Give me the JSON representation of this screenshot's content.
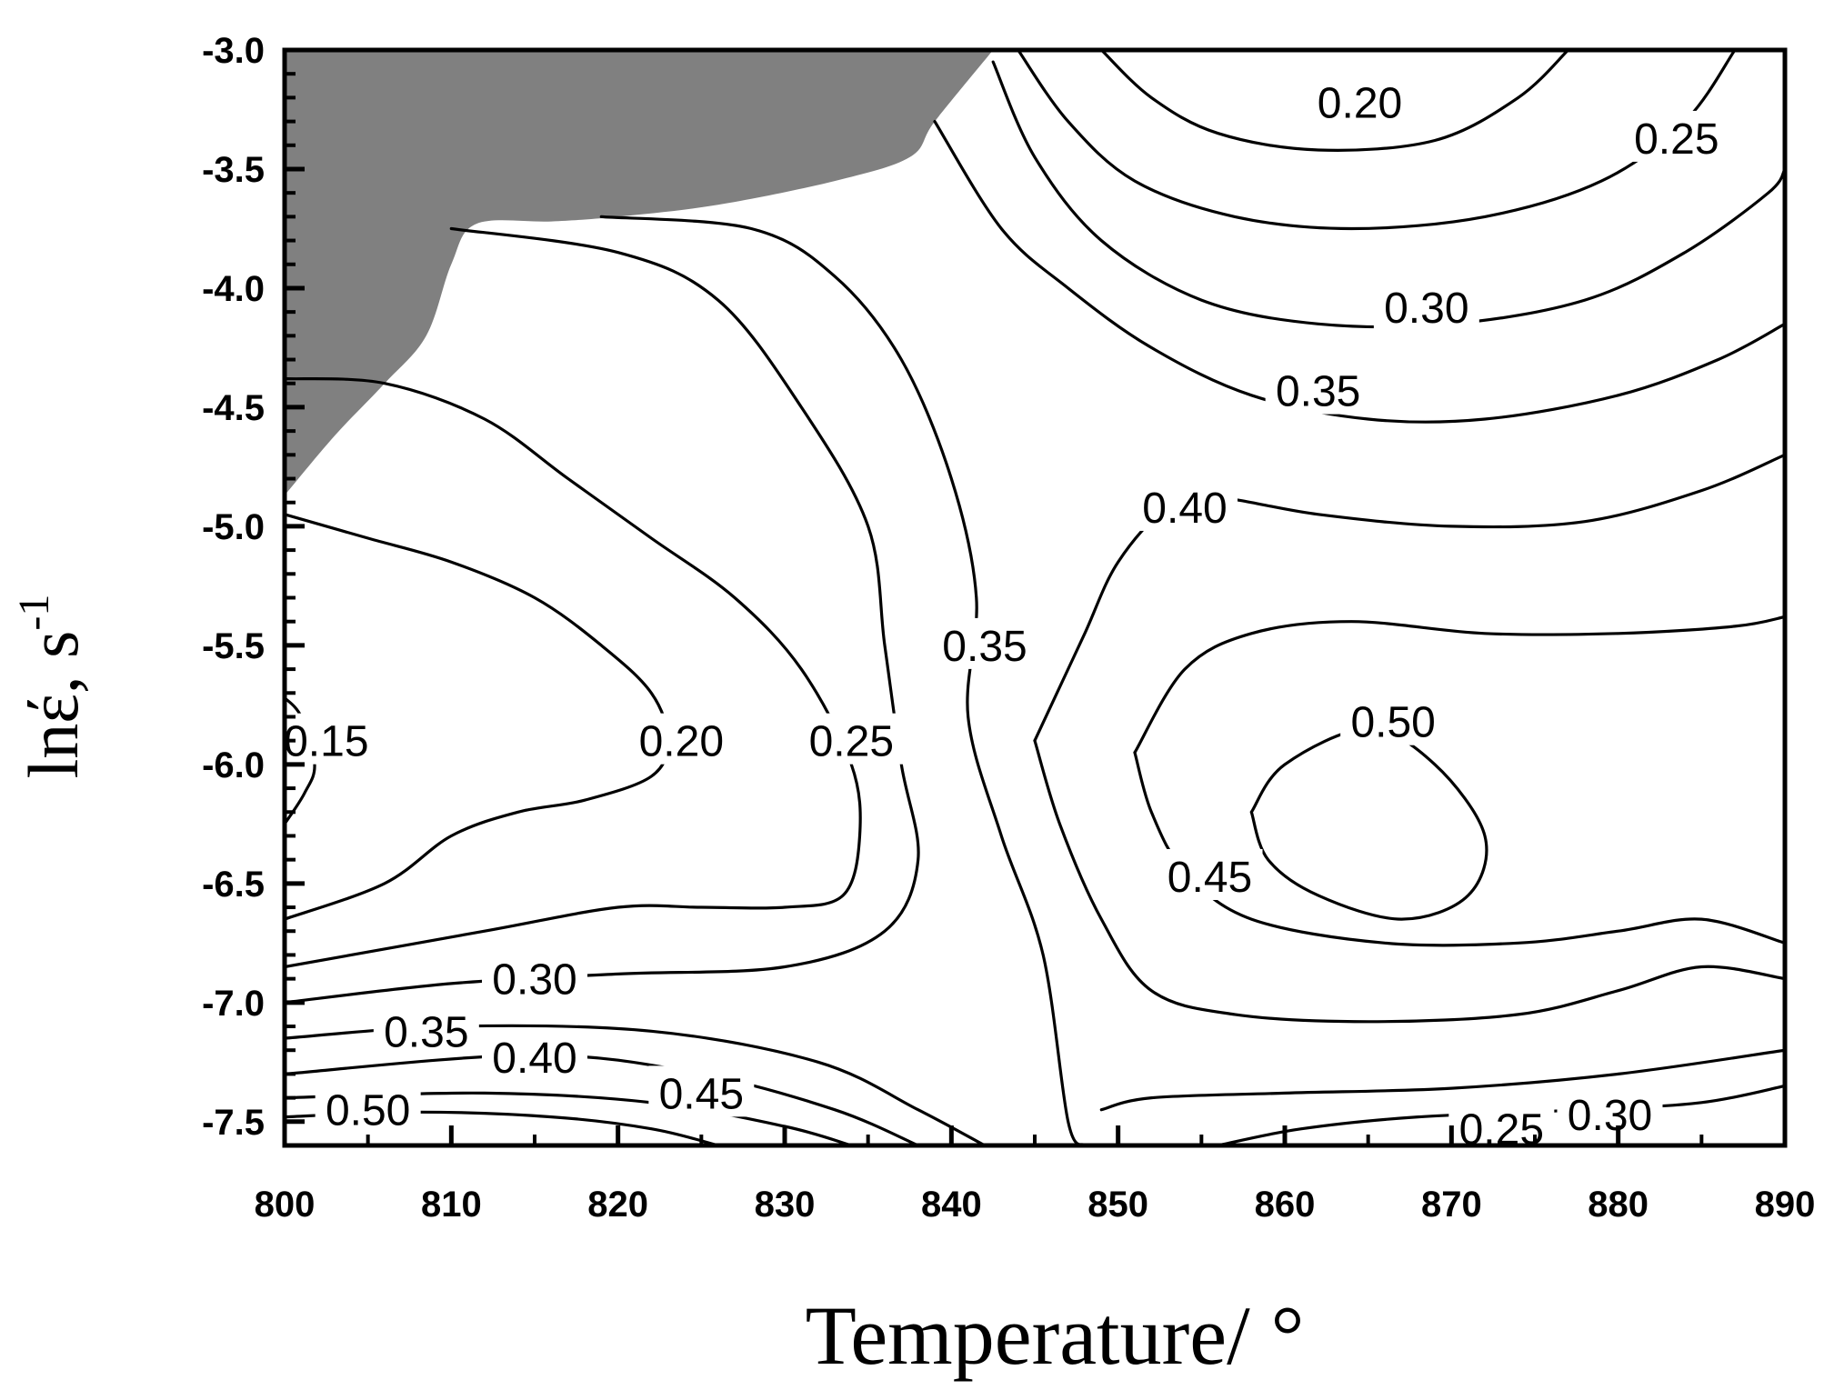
{
  "chart_data": {
    "type": "contour",
    "xlabel": "Temperature/ °",
    "ylabel_main": "lnέ, s",
    "ylabel_sup": "-1",
    "xlim": [
      800,
      890
    ],
    "ylim": [
      -7.6,
      -3.0
    ],
    "xticks": [
      800,
      810,
      820,
      830,
      840,
      850,
      860,
      870,
      880,
      890
    ],
    "xtick_labels": [
      "800",
      "810",
      "820",
      "830",
      "840",
      "850",
      "860",
      "870",
      "880",
      "890"
    ],
    "yticks": [
      -3.0,
      -3.5,
      -4.0,
      -4.5,
      -5.0,
      -5.5,
      -6.0,
      -6.5,
      -7.0,
      -7.5
    ],
    "ytick_labels": [
      "-3.0",
      "-3.5",
      "-4.0",
      "-4.5",
      "-5.0",
      "-5.5",
      "-6.0",
      "-6.5",
      "-7.0",
      "-7.5"
    ],
    "instability_region_color": "#808080",
    "instability_region": [
      [
        800,
        -3.0
      ],
      [
        842.5,
        -3.0
      ],
      [
        839,
        -3.3
      ],
      [
        837.5,
        -3.45
      ],
      [
        833,
        -3.55
      ],
      [
        826,
        -3.65
      ],
      [
        820,
        -3.7
      ],
      [
        816,
        -3.72
      ],
      [
        811.5,
        -3.73
      ],
      [
        810,
        -3.9
      ],
      [
        808.5,
        -4.2
      ],
      [
        806,
        -4.4
      ],
      [
        803,
        -4.62
      ],
      [
        800,
        -4.87
      ]
    ],
    "contours": [
      {
        "level": "0.15",
        "points": [
          [
            800,
            -5.72
          ],
          [
            801,
            -5.8
          ],
          [
            801.8,
            -6.0
          ],
          [
            801.2,
            -6.12
          ],
          [
            800,
            -6.25
          ]
        ]
      },
      {
        "level": "0.20",
        "points": [
          [
            800,
            -4.95
          ],
          [
            805,
            -5.05
          ],
          [
            810,
            -5.15
          ],
          [
            815,
            -5.3
          ],
          [
            819,
            -5.5
          ],
          [
            822,
            -5.7
          ],
          [
            823,
            -5.9
          ],
          [
            822,
            -6.05
          ],
          [
            818,
            -6.15
          ],
          [
            814,
            -6.2
          ],
          [
            810,
            -6.3
          ],
          [
            806,
            -6.5
          ],
          [
            800,
            -6.65
          ]
        ]
      },
      {
        "level": "0.25",
        "points": [
          [
            800,
            -4.38
          ],
          [
            806,
            -4.4
          ],
          [
            812,
            -4.55
          ],
          [
            817,
            -4.8
          ],
          [
            822,
            -5.05
          ],
          [
            827,
            -5.3
          ],
          [
            831,
            -5.6
          ],
          [
            834,
            -6.0
          ],
          [
            834.5,
            -6.3
          ],
          [
            833.5,
            -6.55
          ],
          [
            830,
            -6.6
          ],
          [
            825,
            -6.6
          ],
          [
            820,
            -6.6
          ],
          [
            812,
            -6.7
          ],
          [
            800,
            -6.85
          ]
        ]
      },
      {
        "level": "0.30",
        "points": [
          [
            810,
            -3.75
          ],
          [
            820,
            -3.85
          ],
          [
            826,
            -4.05
          ],
          [
            831,
            -4.5
          ],
          [
            835,
            -5.0
          ],
          [
            836,
            -5.5
          ],
          [
            837,
            -6.0
          ],
          [
            838,
            -6.4
          ],
          [
            836,
            -6.7
          ],
          [
            830,
            -6.85
          ],
          [
            820,
            -6.88
          ],
          [
            810,
            -6.92
          ],
          [
            800,
            -7.0
          ]
        ]
      },
      {
        "level": "0.35",
        "points": [
          [
            819,
            -3.7
          ],
          [
            828,
            -3.75
          ],
          [
            833,
            -3.95
          ],
          [
            837,
            -4.3
          ],
          [
            840,
            -4.8
          ],
          [
            841.5,
            -5.3
          ],
          [
            841,
            -5.8
          ],
          [
            843,
            -6.3
          ],
          [
            845.5,
            -6.8
          ],
          [
            847,
            -7.5
          ],
          [
            848,
            -7.6
          ]
        ]
      },
      {
        "level": "0.35",
        "points": [
          [
            800,
            -7.15
          ],
          [
            810,
            -7.1
          ],
          [
            822,
            -7.12
          ],
          [
            832,
            -7.25
          ],
          [
            838,
            -7.45
          ],
          [
            842,
            -7.6
          ]
        ]
      },
      {
        "level": "0.40",
        "points": [
          [
            800,
            -7.3
          ],
          [
            815,
            -7.22
          ],
          [
            825,
            -7.3
          ],
          [
            833,
            -7.45
          ],
          [
            838,
            -7.6
          ]
        ]
      },
      {
        "level": "0.45",
        "points": [
          [
            800,
            -7.4
          ],
          [
            812,
            -7.38
          ],
          [
            822,
            -7.42
          ],
          [
            830,
            -7.52
          ],
          [
            834,
            -7.6
          ]
        ]
      },
      {
        "level": "0.50",
        "points": [
          [
            800,
            -7.48
          ],
          [
            808,
            -7.46
          ],
          [
            816,
            -7.48
          ],
          [
            822,
            -7.53
          ],
          [
            826,
            -7.6
          ]
        ]
      },
      {
        "level": "0.35",
        "points": [
          [
            839,
            -3.3
          ],
          [
            843,
            -3.75
          ],
          [
            847,
            -4.0
          ],
          [
            852,
            -4.25
          ],
          [
            858,
            -4.45
          ],
          [
            865,
            -4.55
          ],
          [
            872,
            -4.55
          ],
          [
            880,
            -4.45
          ],
          [
            886,
            -4.3
          ],
          [
            890,
            -4.15
          ]
        ]
      },
      {
        "level": "0.40",
        "points": [
          [
            845,
            -5.9
          ],
          [
            846,
            -5.75
          ],
          [
            848,
            -5.45
          ],
          [
            850,
            -5.15
          ],
          [
            853,
            -4.92
          ],
          [
            856,
            -4.88
          ],
          [
            862,
            -4.95
          ],
          [
            870,
            -5.0
          ],
          [
            878,
            -4.98
          ],
          [
            885,
            -4.85
          ],
          [
            890,
            -4.7
          ]
        ]
      },
      {
        "level": "0.45",
        "points": [
          [
            851,
            -5.95
          ],
          [
            854,
            -5.6
          ],
          [
            858,
            -5.45
          ],
          [
            864,
            -5.4
          ],
          [
            872,
            -5.45
          ],
          [
            880,
            -5.45
          ],
          [
            887,
            -5.42
          ],
          [
            890,
            -5.38
          ]
        ]
      },
      {
        "level": "0.45",
        "points": [
          [
            845,
            -5.9
          ],
          [
            846.5,
            -6.25
          ],
          [
            849,
            -6.65
          ],
          [
            852,
            -6.95
          ],
          [
            857,
            -7.05
          ],
          [
            865,
            -7.08
          ],
          [
            874,
            -7.05
          ],
          [
            880,
            -6.95
          ],
          [
            885,
            -6.85
          ],
          [
            890,
            -6.9
          ]
        ]
      },
      {
        "level": "0.45",
        "points": [
          [
            851,
            -5.95
          ],
          [
            852,
            -6.2
          ],
          [
            854,
            -6.45
          ],
          [
            858,
            -6.65
          ],
          [
            866,
            -6.75
          ],
          [
            874,
            -6.75
          ],
          [
            880,
            -6.7
          ],
          [
            885,
            -6.65
          ],
          [
            890,
            -6.75
          ]
        ]
      },
      {
        "level": "0.50",
        "points": [
          [
            858,
            -6.2
          ],
          [
            860,
            -6.0
          ],
          [
            865,
            -5.85
          ],
          [
            869,
            -6.0
          ],
          [
            872,
            -6.3
          ],
          [
            871,
            -6.55
          ],
          [
            867,
            -6.65
          ],
          [
            862,
            -6.55
          ],
          [
            859,
            -6.4
          ],
          [
            858,
            -6.2
          ]
        ]
      },
      {
        "level": "0.25",
        "points": [
          [
            849,
            -7.45
          ],
          [
            852,
            -7.4
          ],
          [
            860,
            -7.38
          ],
          [
            870,
            -7.36
          ],
          [
            880,
            -7.3
          ],
          [
            890,
            -7.2
          ]
        ]
      },
      {
        "level": "0.30",
        "points": [
          [
            856,
            -7.6
          ],
          [
            861,
            -7.53
          ],
          [
            868,
            -7.48
          ],
          [
            878,
            -7.45
          ],
          [
            885,
            -7.42
          ],
          [
            890,
            -7.35
          ]
        ]
      },
      {
        "level": "0.20",
        "points": [
          [
            849,
            -3.0
          ],
          [
            852,
            -3.2
          ],
          [
            856,
            -3.35
          ],
          [
            862,
            -3.42
          ],
          [
            869,
            -3.38
          ],
          [
            874,
            -3.2
          ],
          [
            877,
            -3.0
          ]
        ]
      },
      {
        "level": "0.25",
        "points": [
          [
            844,
            -3.0
          ],
          [
            847,
            -3.3
          ],
          [
            851,
            -3.55
          ],
          [
            857,
            -3.7
          ],
          [
            864,
            -3.75
          ],
          [
            872,
            -3.7
          ],
          [
            879,
            -3.55
          ],
          [
            884,
            -3.3
          ],
          [
            887,
            -3.0
          ]
        ]
      },
      {
        "level": "0.30",
        "points": [
          [
            842.5,
            -3.05
          ],
          [
            845,
            -3.45
          ],
          [
            849,
            -3.8
          ],
          [
            855,
            -4.05
          ],
          [
            862,
            -4.15
          ],
          [
            870,
            -4.15
          ],
          [
            878,
            -4.05
          ],
          [
            884,
            -3.85
          ],
          [
            889,
            -3.6
          ],
          [
            890,
            -3.5
          ]
        ]
      }
    ],
    "contour_labels": [
      {
        "text": "0.15",
        "x": 802.5,
        "y": -5.9
      },
      {
        "text": "0.20",
        "x": 823.8,
        "y": -5.9
      },
      {
        "text": "0.25",
        "x": 834,
        "y": -5.9
      },
      {
        "text": "0.30",
        "x": 815,
        "y": -6.9
      },
      {
        "text": "0.35",
        "x": 808.5,
        "y": -7.12
      },
      {
        "text": "0.40",
        "x": 815,
        "y": -7.23
      },
      {
        "text": "0.45",
        "x": 825,
        "y": -7.38
      },
      {
        "text": "0.50",
        "x": 805,
        "y": -7.45
      },
      {
        "text": "0.35",
        "x": 842,
        "y": -5.5
      },
      {
        "text": "0.20",
        "x": 864.5,
        "y": -3.22
      },
      {
        "text": "0.25",
        "x": 883.5,
        "y": -3.37
      },
      {
        "text": "0.30",
        "x": 868.5,
        "y": -4.08
      },
      {
        "text": "0.35",
        "x": 862,
        "y": -4.43
      },
      {
        "text": "0.40",
        "x": 854,
        "y": -4.92
      },
      {
        "text": "0.50",
        "x": 866.5,
        "y": -5.82
      },
      {
        "text": "0.45",
        "x": 855.5,
        "y": -6.47
      },
      {
        "text": "0.30",
        "x": 879.5,
        "y": -7.47
      },
      {
        "text": "0.25",
        "x": 873,
        "y": -7.53
      }
    ]
  }
}
